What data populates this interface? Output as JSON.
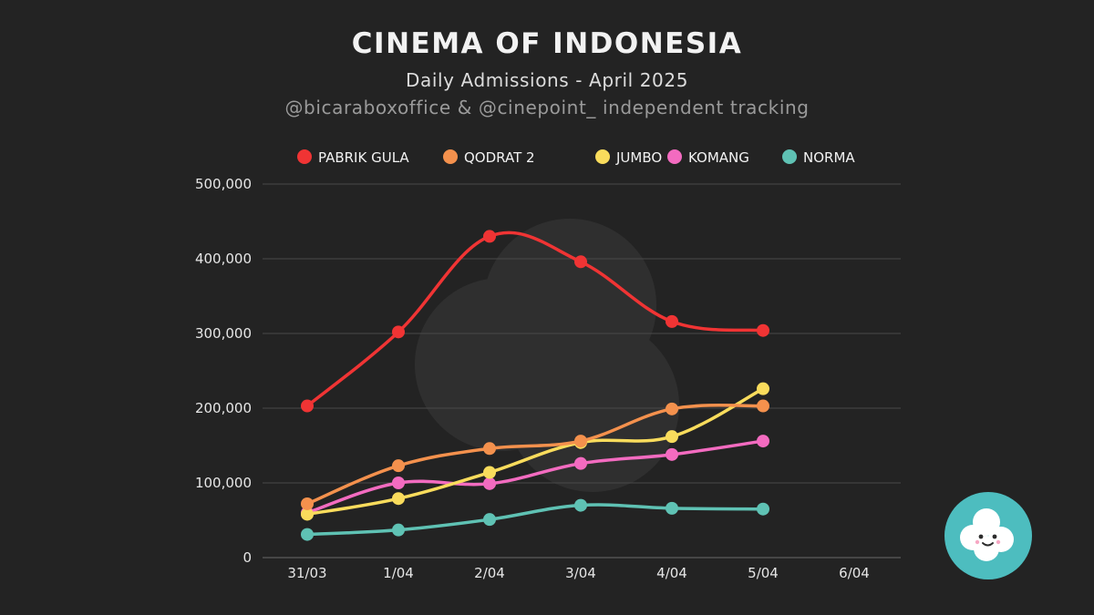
{
  "header": {
    "title": "CINEMA OF INDONESIA",
    "subtitle": "Daily Admissions - April 2025",
    "credit": "@bicaraboxoffice & @cinepoint_ independent tracking"
  },
  "colors": {
    "background": "#232323",
    "grid": "#4a4a4a",
    "axis_text": "#e6e6e6",
    "watermark": "#3a3a3a",
    "logo": "#4dbdbf"
  },
  "chart_data": {
    "type": "line",
    "categories": [
      "31/03",
      "1/04",
      "2/04",
      "3/04",
      "4/04",
      "5/04",
      "6/04"
    ],
    "ylim": [
      0,
      500000
    ],
    "yticks": [
      0,
      100000,
      200000,
      300000,
      400000,
      500000
    ],
    "ytick_labels": [
      "0",
      "100,000",
      "200,000",
      "300,000",
      "400,000",
      "500,000"
    ],
    "grid": true,
    "legend_position": "top",
    "series": [
      {
        "name": "PABRIK GULA",
        "color": "#f03434",
        "values": [
          203000,
          302000,
          430000,
          396000,
          316000,
          304000,
          null
        ]
      },
      {
        "name": "QODRAT 2",
        "color": "#f4914d",
        "values": [
          72000,
          123000,
          146000,
          156000,
          199000,
          203000,
          null
        ]
      },
      {
        "name": "JUMBO",
        "color": "#f9dc5c",
        "values": [
          58000,
          79000,
          114000,
          154000,
          162000,
          226000,
          null
        ]
      },
      {
        "name": "KOMANG",
        "color": "#f36bc0",
        "values": [
          60000,
          100000,
          99000,
          126000,
          138000,
          156000,
          null
        ]
      },
      {
        "name": "NORMA",
        "color": "#5fc2b4",
        "values": [
          31000,
          37000,
          51000,
          70000,
          66000,
          65000,
          null
        ]
      }
    ]
  }
}
